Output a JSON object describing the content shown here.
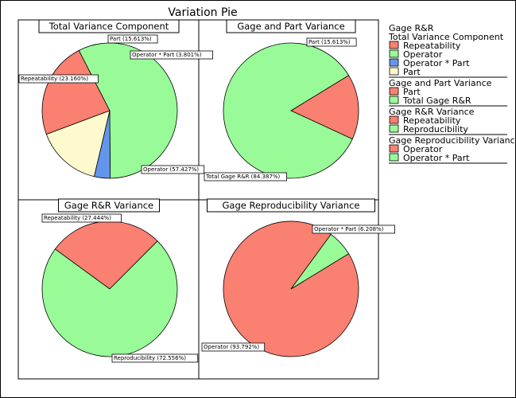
{
  "title": "Variation Pie",
  "chart_data": [
    {
      "type": "pie",
      "title": "Total Variance Component",
      "slices": [
        {
          "label": "Repeatability",
          "value": 23.16,
          "color": "#fa8072"
        },
        {
          "label": "Operator",
          "value": 57.427,
          "color": "#98fb98"
        },
        {
          "label": "Operator * Part",
          "value": 3.801,
          "color": "#6495ed"
        },
        {
          "label": "Part",
          "value": 15.613,
          "color": "#fffacd"
        }
      ]
    },
    {
      "type": "pie",
      "title": "Gage and Part Variance",
      "slices": [
        {
          "label": "Part",
          "value": 15.613,
          "color": "#fa8072"
        },
        {
          "label": "Total Gage R&R",
          "value": 84.387,
          "color": "#98fb98"
        }
      ]
    },
    {
      "type": "pie",
      "title": "Gage R&R Variance",
      "slices": [
        {
          "label": "Repeatability",
          "value": 27.444,
          "color": "#fa8072"
        },
        {
          "label": "Reproducibility",
          "value": 72.556,
          "color": "#98fb98"
        }
      ]
    },
    {
      "type": "pie",
      "title": "Gage Reproducibility Variance",
      "slices": [
        {
          "label": "Operator",
          "value": 93.792,
          "color": "#fa8072"
        },
        {
          "label": "Operator * Part",
          "value": 6.208,
          "color": "#98fb98"
        }
      ]
    }
  ],
  "legend": {
    "title": "Gage R&R",
    "groups": [
      {
        "title": "Total Variance Component",
        "items": [
          {
            "label": "Repeatability",
            "color": "#fa8072"
          },
          {
            "label": "Operator",
            "color": "#98fb98"
          },
          {
            "label": "Operator * Part",
            "color": "#6495ed"
          },
          {
            "label": "Part",
            "color": "#fffacd"
          }
        ]
      },
      {
        "title": "Gage and Part Variance",
        "items": [
          {
            "label": "Part",
            "color": "#fa8072"
          },
          {
            "label": "Total Gage R&R",
            "color": "#98fb98"
          }
        ]
      },
      {
        "title": "Gage R&R Variance",
        "items": [
          {
            "label": "Repeatability",
            "color": "#fa8072"
          },
          {
            "label": "Reproducibility",
            "color": "#98fb98"
          }
        ]
      },
      {
        "title": "Gage Reproducibility Variance",
        "items": [
          {
            "label": "Operator",
            "color": "#fa8072"
          },
          {
            "label": "Operator * Part",
            "color": "#98fb98"
          }
        ]
      }
    ]
  }
}
